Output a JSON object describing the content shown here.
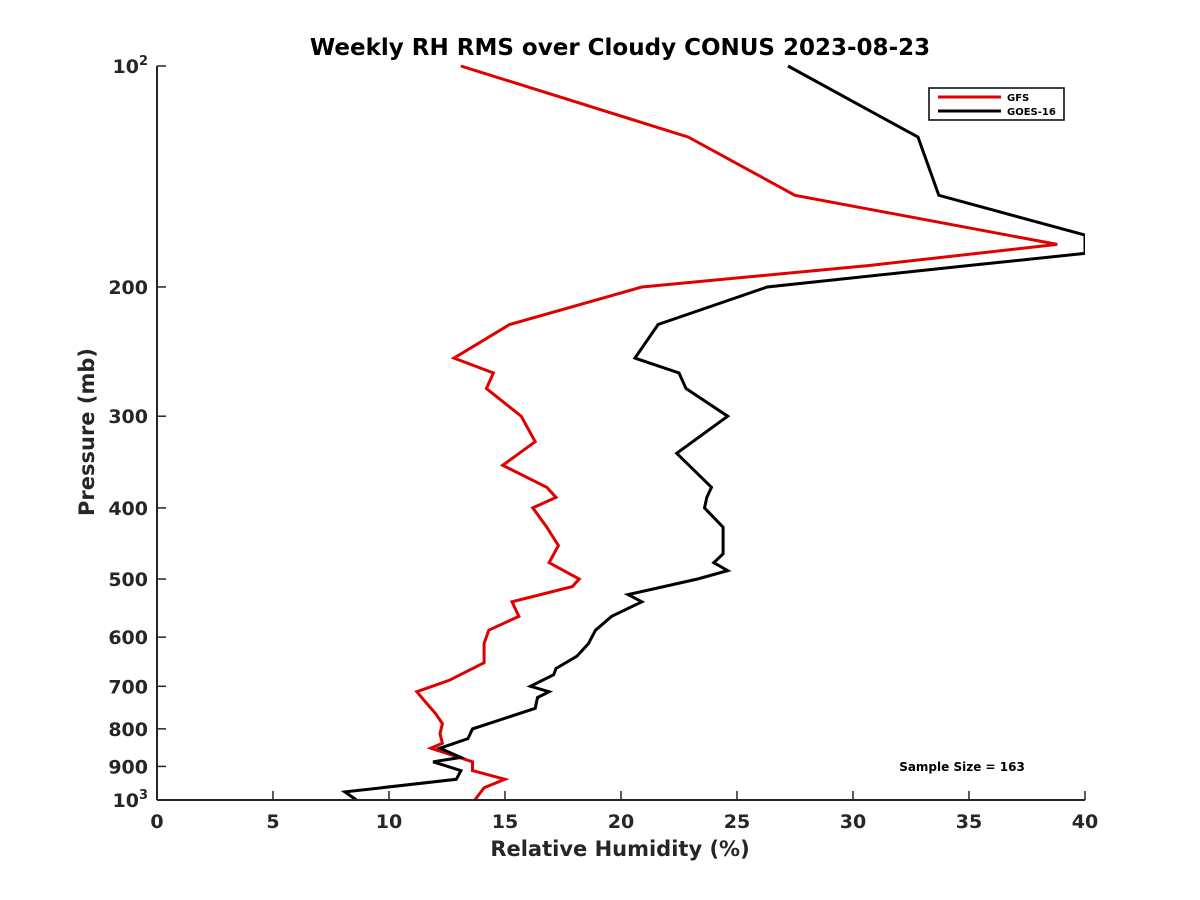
{
  "chart_data": {
    "type": "line",
    "title": "Weekly RH RMS over Cloudy CONUS 2023-08-23",
    "xlabel": "Relative Humidity (%)",
    "ylabel": "Pressure (mb)",
    "xlim": [
      0,
      40
    ],
    "ylim": [
      100,
      1000
    ],
    "y_scale": "log",
    "y_reversed": true,
    "x_ticks": [
      0,
      5,
      10,
      15,
      20,
      25,
      30,
      35,
      40
    ],
    "y_ticks": [
      {
        "value": 100,
        "base": "10",
        "exp": "2"
      },
      {
        "value": 200,
        "label": "200"
      },
      {
        "value": 300,
        "label": "300"
      },
      {
        "value": 400,
        "label": "400"
      },
      {
        "value": 500,
        "label": "500"
      },
      {
        "value": 600,
        "label": "600"
      },
      {
        "value": 700,
        "label": "700"
      },
      {
        "value": 800,
        "label": "800"
      },
      {
        "value": 900,
        "label": "900"
      },
      {
        "value": 1000,
        "base": "10",
        "exp": "3"
      }
    ],
    "grid": false,
    "legend_position": "top-right",
    "annotation": "Sample Size = 163",
    "series": [
      {
        "name": "GFS",
        "color": "#e00000",
        "points": [
          [
            13.1,
            100
          ],
          [
            22.9,
            125
          ],
          [
            27.5,
            150
          ],
          [
            38.8,
            175
          ],
          [
            30.7,
            187
          ],
          [
            20.9,
            200
          ],
          [
            15.2,
            225
          ],
          [
            12.8,
            250
          ],
          [
            14.5,
            262
          ],
          [
            14.2,
            275
          ],
          [
            15.7,
            300
          ],
          [
            16.3,
            325
          ],
          [
            14.9,
            350
          ],
          [
            16.8,
            375
          ],
          [
            17.2,
            387
          ],
          [
            16.2,
            400
          ],
          [
            16.8,
            425
          ],
          [
            17.3,
            450
          ],
          [
            16.9,
            475
          ],
          [
            18.2,
            500
          ],
          [
            17.9,
            512
          ],
          [
            15.3,
            537
          ],
          [
            15.6,
            562
          ],
          [
            14.3,
            587
          ],
          [
            14.1,
            612
          ],
          [
            14.1,
            650
          ],
          [
            12.6,
            687
          ],
          [
            11.2,
            712
          ],
          [
            11.6,
            737
          ],
          [
            12.0,
            762
          ],
          [
            12.3,
            787
          ],
          [
            12.2,
            812
          ],
          [
            12.3,
            837
          ],
          [
            11.8,
            850
          ],
          [
            12.4,
            862
          ],
          [
            13.6,
            887
          ],
          [
            13.6,
            912
          ],
          [
            15.0,
            937
          ],
          [
            14.1,
            962
          ],
          [
            13.7,
            1000
          ]
        ]
      },
      {
        "name": "GOES-16",
        "color": "#000000",
        "points": [
          [
            27.2,
            100
          ],
          [
            32.8,
            125
          ],
          [
            33.7,
            150
          ],
          [
            40.0,
            170
          ],
          [
            40.0,
            180
          ],
          [
            35.0,
            187
          ],
          [
            26.3,
            200
          ],
          [
            21.6,
            225
          ],
          [
            20.6,
            250
          ],
          [
            22.5,
            262
          ],
          [
            22.8,
            275
          ],
          [
            24.6,
            300
          ],
          [
            22.4,
            337
          ],
          [
            23.9,
            375
          ],
          [
            23.7,
            387
          ],
          [
            23.6,
            400
          ],
          [
            24.4,
            425
          ],
          [
            24.4,
            462
          ],
          [
            24.0,
            475
          ],
          [
            24.6,
            487
          ],
          [
            23.3,
            500
          ],
          [
            20.3,
            525
          ],
          [
            20.9,
            537
          ],
          [
            19.6,
            562
          ],
          [
            18.9,
            587
          ],
          [
            18.6,
            612
          ],
          [
            18.1,
            637
          ],
          [
            17.2,
            662
          ],
          [
            17.1,
            675
          ],
          [
            16.1,
            700
          ],
          [
            16.9,
            712
          ],
          [
            16.4,
            725
          ],
          [
            16.3,
            750
          ],
          [
            13.6,
            800
          ],
          [
            13.4,
            825
          ],
          [
            12.2,
            850
          ],
          [
            13.1,
            875
          ],
          [
            11.9,
            887
          ],
          [
            13.1,
            912
          ],
          [
            12.9,
            937
          ],
          [
            8.1,
            975
          ],
          [
            8.6,
            1000
          ]
        ]
      }
    ]
  }
}
